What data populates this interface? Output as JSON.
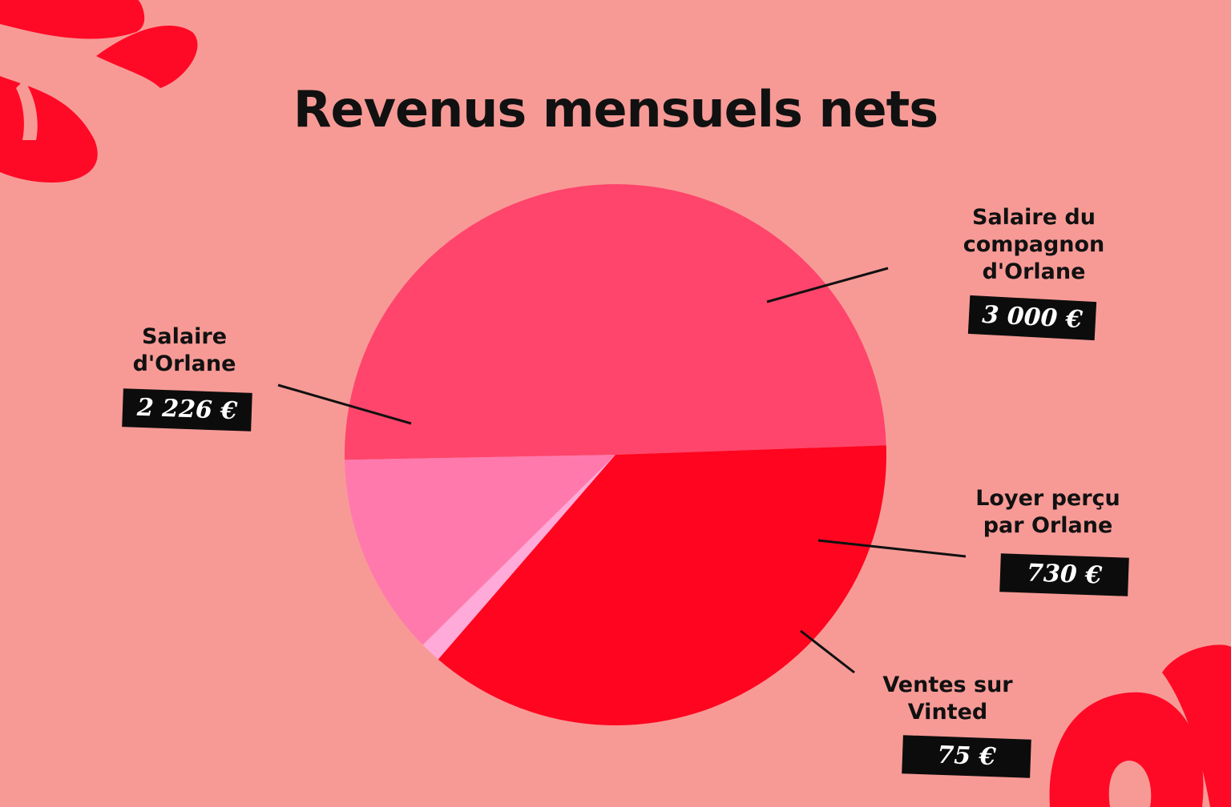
{
  "title": "Revenus mensuels nets",
  "colors": {
    "background": "#f79a96",
    "accent_shape": "#ff0a26"
  },
  "chart_data": {
    "type": "pie",
    "currency": "€",
    "slices": [
      {
        "label_lines": [
          "Salaire du",
          "compagnon",
          "d'Orlane"
        ],
        "value": 3000,
        "value_text": "3 000 €",
        "color": "#ff456b"
      },
      {
        "label_lines": [
          "Loyer perçu",
          "par Orlane"
        ],
        "value": 730,
        "value_text": "730 €",
        "color": "#ff79ad"
      },
      {
        "label_lines": [
          "Ventes sur",
          "Vinted"
        ],
        "value": 75,
        "value_text": "75 €",
        "color": "#ffaad8"
      },
      {
        "label_lines": [
          "Salaire",
          "d'Orlane"
        ],
        "value": 2226,
        "value_text": "2 226 €",
        "color": "#ff0520"
      }
    ],
    "legend": "none",
    "data_labels": "outside-with-leader-lines"
  }
}
